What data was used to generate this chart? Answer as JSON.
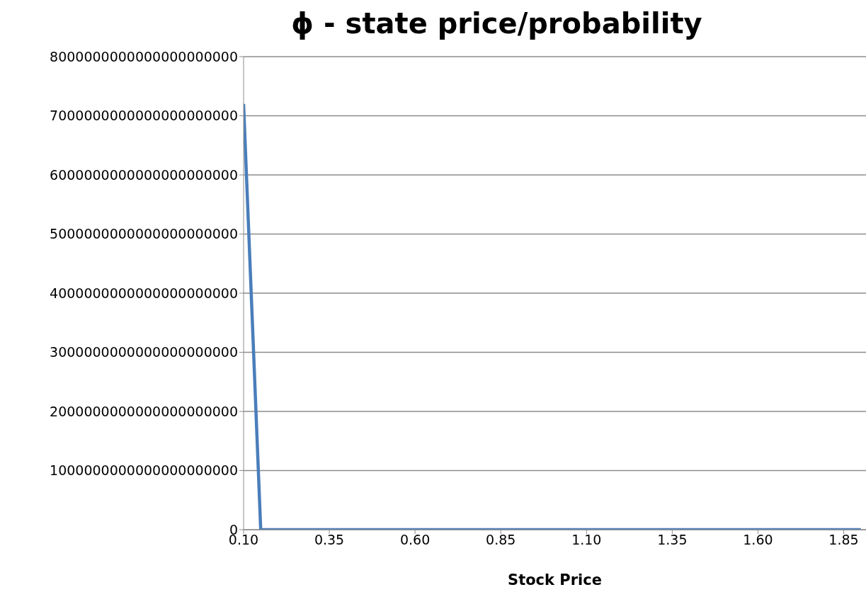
{
  "chart_data": {
    "type": "line",
    "title": "ϕ - state price/probability",
    "xlabel": "Stock Price",
    "categories": [
      "0.10",
      null,
      null,
      null,
      null,
      "0.35",
      null,
      null,
      null,
      null,
      "0.60",
      null,
      null,
      null,
      null,
      "0.85",
      null,
      null,
      null,
      null,
      "1.10",
      null,
      null,
      null,
      null,
      "1.35",
      null,
      null,
      null,
      null,
      "1.60",
      null,
      null,
      null,
      null,
      "1.85",
      null
    ],
    "series": [
      {
        "color": "#4a7ebb",
        "values": [
          7200000000000000000000,
          0,
          0,
          0,
          0,
          0,
          0,
          0,
          0,
          0,
          0,
          0,
          0,
          0,
          0,
          0,
          0,
          0,
          0,
          0,
          0,
          0,
          0,
          0,
          0,
          0,
          0,
          0,
          0,
          0,
          0,
          0,
          0,
          0,
          0,
          0,
          0
        ]
      }
    ],
    "ylim": [
      0,
      8000000000000000000000
    ],
    "yticks": [
      0,
      1000000000000000000000,
      2000000000000000000000,
      3000000000000000000000,
      4000000000000000000000,
      5000000000000000000000,
      6000000000000000000000,
      7000000000000000000000,
      8000000000000000000000
    ],
    "grid": "y",
    "legend": false,
    "marker": "none",
    "line_style": "solid"
  }
}
